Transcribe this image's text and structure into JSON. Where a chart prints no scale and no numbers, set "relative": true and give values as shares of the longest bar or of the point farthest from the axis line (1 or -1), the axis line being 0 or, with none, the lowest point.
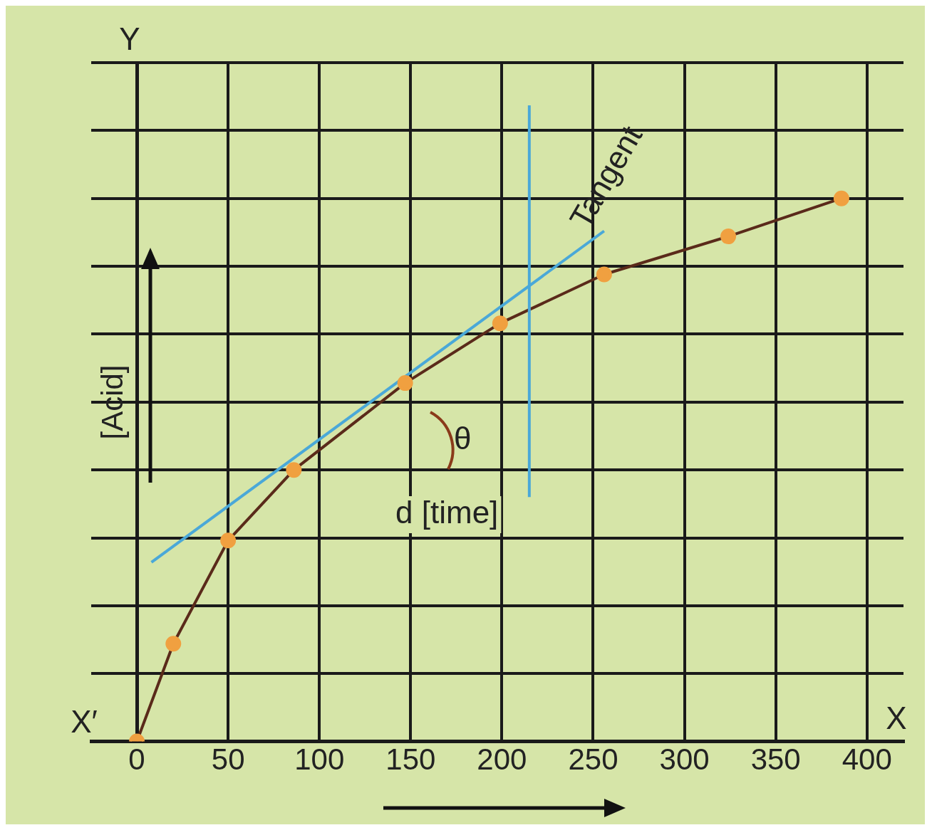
{
  "chart_data": {
    "type": "line",
    "relative": true,
    "xlabel": "X",
    "ylabel": "[Acid]",
    "annotations": [
      "Y",
      "X′",
      "Tangent",
      "θ",
      "d [time]"
    ],
    "xlim": [
      -25,
      420
    ],
    "xticks": [
      0,
      50,
      100,
      150,
      200,
      250,
      300,
      350,
      400
    ],
    "series": [
      {
        "color": "#5a2a1a",
        "marker": "circle",
        "x": [
          0,
          20,
          50,
          86,
          147,
          199,
          256,
          324,
          386
        ],
        "values": [
          0,
          0.18,
          0.37,
          0.5,
          0.66,
          0.77,
          0.86,
          0.93,
          1
        ]
      },
      {
        "color": "#4aa8d8",
        "marker": "none",
        "x": [
          8,
          256
        ],
        "values": [
          0.33,
          0.94
        ]
      }
    ],
    "ref_lines": [
      {
        "axis": "x",
        "value": 215,
        "color": "#4aa8d8"
      }
    ],
    "grid": true,
    "legend": false
  }
}
